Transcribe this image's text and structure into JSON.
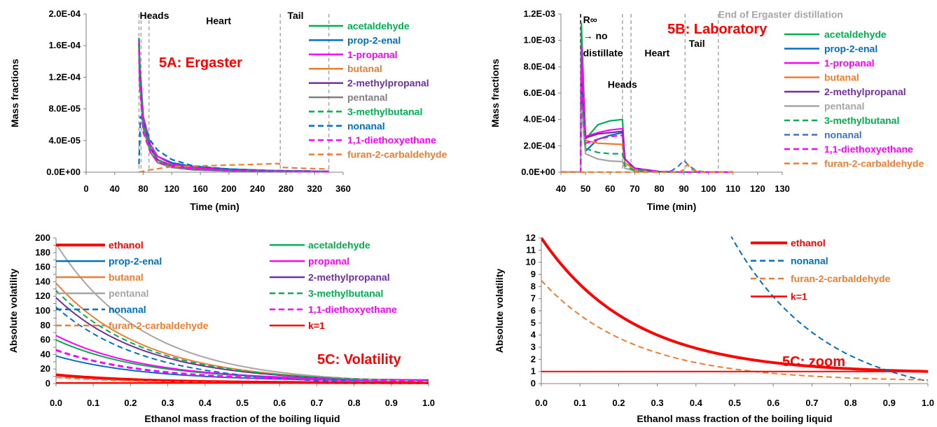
{
  "chart_data": [
    {
      "id": "A",
      "type": "line",
      "title": "5A: Ergaster",
      "xlabel": "Time (min)",
      "ylabel": "Mass fractions",
      "xlim": [
        0,
        360
      ],
      "ylim": [
        0,
        0.0002
      ],
      "xticks": [
        0,
        40,
        80,
        120,
        160,
        200,
        240,
        280,
        320,
        360
      ],
      "yticks": [
        0,
        4e-05,
        8e-05,
        0.00012,
        0.00016,
        0.0002
      ],
      "ytick_labels": [
        "0.0E+00",
        "4.0E-05",
        "8.0E-05",
        "1.2E-04",
        "1.6E-04",
        "2.0E-04"
      ],
      "vlines": [
        74,
        77,
        88,
        272,
        340
      ],
      "annotations": [
        {
          "text": "Heads",
          "x": 75,
          "y": 0.000194
        },
        {
          "text": "Heart",
          "x": 168,
          "y": 0.000187
        },
        {
          "text": "Tail",
          "x": 282,
          "y": 0.000194
        }
      ],
      "series": [
        {
          "name": "acetaldehyde",
          "color": "#00b050",
          "dash": false,
          "x": [
            74,
            75,
            80,
            90,
            100,
            120,
            150,
            200,
            260,
            340
          ],
          "y": [
            0.00017,
            0.00014,
            7e-05,
            3e-05,
            1.5e-05,
            6e-06,
            3e-06,
            1.5e-06,
            1e-06,
            5e-07
          ]
        },
        {
          "name": "prop-2-enal",
          "color": "#0070c0",
          "dash": false,
          "x": [
            74,
            75,
            80,
            90,
            100,
            120,
            150,
            200,
            260,
            340
          ],
          "y": [
            0.000168,
            0.00012,
            6e-05,
            3e-05,
            2e-05,
            1.2e-05,
            7e-06,
            4e-06,
            2e-06,
            1e-06
          ]
        },
        {
          "name": "1-propanal",
          "color": "#ff00ff",
          "dash": false,
          "x": [
            74,
            75,
            80,
            90,
            100,
            120,
            150,
            200,
            260,
            340
          ],
          "y": [
            0.000165,
            0.00013,
            7e-05,
            3.5e-05,
            2e-05,
            1e-05,
            6e-06,
            3e-06,
            2e-06,
            1e-06
          ]
        },
        {
          "name": "butanal",
          "color": "#ed7d31",
          "dash": false,
          "x": [
            74,
            75,
            80,
            90,
            100,
            120,
            150,
            200,
            260,
            340
          ],
          "y": [
            0.00016,
            0.00012,
            6e-05,
            3e-05,
            1.5e-05,
            8e-06,
            4e-06,
            2e-06,
            1e-06,
            5e-07
          ]
        },
        {
          "name": "2-methylpropanal",
          "color": "#7030a0",
          "dash": false,
          "x": [
            74,
            75,
            80,
            90,
            100,
            120,
            150,
            200,
            260,
            340
          ],
          "y": [
            0.000162,
            0.000125,
            6e-05,
            3e-05,
            1.6e-05,
            8e-06,
            4e-06,
            2e-06,
            1e-06,
            5e-07
          ]
        },
        {
          "name": "pentanal",
          "color": "#808080",
          "dash": false,
          "x": [
            74,
            75,
            80,
            90,
            100,
            120,
            150,
            200,
            260,
            340
          ],
          "y": [
            0.000155,
            0.000115,
            5.5e-05,
            2.5e-05,
            1.2e-05,
            6e-06,
            3e-06,
            1.5e-06,
            1e-06,
            5e-07
          ]
        },
        {
          "name": "3-methylbutanal",
          "color": "#00b050",
          "dash": true,
          "x": [
            74,
            75,
            80,
            90,
            100,
            120,
            150,
            200,
            260,
            340
          ],
          "y": [
            0.00016,
            0.00012,
            6e-05,
            3e-05,
            1.6e-05,
            8e-06,
            4e-06,
            2e-06,
            1e-06,
            5e-07
          ]
        },
        {
          "name": "nonanal",
          "color": "#0070c0",
          "dash": true,
          "x": [
            74,
            76,
            80,
            90,
            100,
            120,
            150,
            200,
            260,
            340
          ],
          "y": [
            1e-05,
            7e-05,
            6.5e-05,
            4e-05,
            2.8e-05,
            1.6e-05,
            8e-06,
            4e-06,
            2e-06,
            1e-06
          ]
        },
        {
          "name": "1,1-diethoxyethane",
          "color": "#ff00ff",
          "dash": true,
          "x": [
            74,
            75,
            80,
            90,
            100,
            120,
            150,
            200,
            260,
            340
          ],
          "y": [
            0.000155,
            0.00011,
            5e-05,
            2.5e-05,
            1.3e-05,
            7e-06,
            4e-06,
            2e-06,
            1e-06,
            5e-07
          ]
        },
        {
          "name": "furan-2-carbaldehyde",
          "color": "#ed7d31",
          "dash": true,
          "x": [
            74,
            90,
            120,
            160,
            200,
            240,
            270,
            276,
            300,
            340
          ],
          "y": [
            0,
            3e-06,
            7e-06,
            8e-06,
            9e-06,
            1e-05,
            1.1e-05,
            6e-06,
            5e-06,
            4e-06
          ]
        }
      ]
    },
    {
      "id": "B",
      "type": "line",
      "title": "5B: Laboratory",
      "xlabel": "Time (min)",
      "ylabel": "Mass fractions",
      "xlim": [
        40,
        130
      ],
      "ylim": [
        0,
        0.0012
      ],
      "xticks": [
        40,
        50,
        60,
        70,
        80,
        90,
        100,
        110,
        120,
        130
      ],
      "yticks": [
        0,
        0.0002,
        0.0004,
        0.0006,
        0.0008,
        0.001,
        0.0012
      ],
      "ytick_labels": [
        "0.0E+00",
        "2.0E-04",
        "4.0E-04",
        "6.0E-04",
        "8.0E-04",
        "1.0E-03",
        "1.2E-03"
      ],
      "vlines": [
        48,
        65,
        68.5,
        90.5,
        104
      ],
      "annotations": [
        {
          "text": "R∞",
          "x": 49,
          "y": 0.00113
        },
        {
          "text": "→ no",
          "x": 49,
          "y": 0.00101
        },
        {
          "text": "distillate",
          "x": 49,
          "y": 0.00088
        },
        {
          "text": "Heart",
          "x": 74,
          "y": 0.00088
        },
        {
          "text": "Heads",
          "x": 59,
          "y": 0.00064
        },
        {
          "text": "Tail",
          "x": 92,
          "y": 0.00095
        },
        {
          "text": "End of  Ergaster distillation",
          "x": 104,
          "y": 0.00117
        }
      ],
      "series": [
        {
          "name": "acetaldehyde",
          "color": "#00b050",
          "dash": false,
          "x": [
            40,
            48,
            48.3,
            50,
            55,
            60,
            65,
            66,
            70,
            80,
            90,
            100,
            110
          ],
          "y": [
            0,
            0,
            0.00113,
            0.00025,
            0.00036,
            0.00039,
            0.0004,
            0.0001,
            2e-05,
            3e-06,
            0,
            0,
            0
          ]
        },
        {
          "name": "prop-2-enal",
          "color": "#0070c0",
          "dash": false,
          "x": [
            40,
            48,
            48.3,
            50,
            55,
            60,
            65,
            66,
            70,
            80,
            90,
            100,
            110
          ],
          "y": [
            0,
            0,
            0.00072,
            0.00016,
            0.00025,
            0.00028,
            0.0003,
            0.0001,
            3e-05,
            5e-06,
            0,
            0,
            0
          ]
        },
        {
          "name": "1-propanal",
          "color": "#ff00ff",
          "dash": false,
          "x": [
            40,
            48,
            48.3,
            50,
            55,
            60,
            65,
            66,
            70,
            80,
            90,
            100,
            110
          ],
          "y": [
            0,
            0,
            0.00095,
            0.00027,
            0.0003,
            0.00032,
            0.00033,
            0.0001,
            3e-05,
            5e-06,
            0,
            0,
            0
          ]
        },
        {
          "name": "butanal",
          "color": "#ed7d31",
          "dash": false,
          "x": [
            40,
            48,
            48.3,
            50,
            55,
            60,
            65,
            66,
            70,
            80,
            90,
            100,
            110
          ],
          "y": [
            0,
            0,
            0.00055,
            0.00024,
            0.00022,
            0.000215,
            0.00021,
            7e-05,
            2e-05,
            3e-06,
            0,
            0,
            0
          ]
        },
        {
          "name": "2-methylpropanal",
          "color": "#7030a0",
          "dash": false,
          "x": [
            40,
            48,
            48.3,
            50,
            55,
            60,
            65,
            66,
            70,
            80,
            90,
            100,
            110
          ],
          "y": [
            0,
            0,
            0.0007,
            0.00026,
            0.00029,
            0.0003,
            0.00031,
            0.0001,
            3e-05,
            5e-06,
            0,
            0,
            0
          ]
        },
        {
          "name": "pentanal",
          "color": "#a6a6a6",
          "dash": false,
          "x": [
            40,
            48,
            48.3,
            50,
            55,
            60,
            65,
            66,
            70,
            80,
            90,
            100,
            110
          ],
          "y": [
            0,
            0,
            0.0005,
            0.00014,
            0.0001,
            8.5e-05,
            8e-05,
            3e-05,
            1e-05,
            2e-06,
            0,
            0,
            0
          ]
        },
        {
          "name": "3-methylbutanal",
          "color": "#00b050",
          "dash": true,
          "x": [
            40,
            48,
            48.3,
            50,
            55,
            60,
            65,
            66,
            70,
            80,
            90,
            100,
            110
          ],
          "y": [
            0,
            0,
            0.0006,
            0.00018,
            0.00015,
            0.00014,
            0.00014,
            5e-05,
            1e-05,
            2e-06,
            0,
            0,
            0
          ]
        },
        {
          "name": "nonanal",
          "color": "#4472c4",
          "dash": true,
          "x": [
            40,
            80,
            85,
            88,
            90,
            92,
            95,
            100,
            110
          ],
          "y": [
            0,
            0,
            1e-05,
            5e-05,
            9e-05,
            5e-05,
            1e-05,
            0,
            0
          ]
        },
        {
          "name": "1,1-diethoxyethane",
          "color": "#ff00ff",
          "dash": true,
          "x": [
            40,
            48,
            48.3,
            50,
            55,
            60,
            65,
            66,
            70,
            80,
            90,
            100,
            110
          ],
          "y": [
            0,
            0,
            0.0009,
            0.00022,
            0.00025,
            0.00027,
            0.00028,
            0.0001,
            3e-05,
            5e-06,
            0,
            0,
            0
          ]
        },
        {
          "name": "furan-2-carbaldehyde",
          "color": "#ed7d31",
          "dash": true,
          "x": [
            40,
            88,
            90,
            91.5,
            93,
            96,
            100,
            110
          ],
          "y": [
            0,
            0,
            2e-05,
            6e-05,
            2e-05,
            5e-06,
            0,
            0
          ]
        }
      ]
    },
    {
      "id": "C",
      "type": "line",
      "title": "5C: Volatility",
      "xlabel": "Ethanol mass fraction of the boiling liquid",
      "ylabel": "Absolute volatility",
      "xlim": [
        0,
        1
      ],
      "ylim": [
        0,
        200
      ],
      "xticks": [
        0,
        0.1,
        0.2,
        0.3,
        0.4,
        0.5,
        0.6,
        0.7,
        0.8,
        0.9,
        1.0
      ],
      "xtick_labels": [
        "0.0",
        "0.1",
        "0.2",
        "0.3",
        "0.4",
        "0.5",
        "0.6",
        "0.7",
        "0.8",
        "0.9",
        "1.0"
      ],
      "yticks": [
        0,
        10,
        20,
        30,
        40,
        50,
        60,
        70,
        80,
        90,
        100,
        110,
        120,
        130,
        140,
        150,
        160,
        170,
        180,
        190,
        200
      ],
      "ytick_labels": [
        "0",
        "",
        "20",
        "",
        "40",
        "",
        "60",
        "",
        "80",
        "",
        "100",
        "",
        "120",
        "",
        "140",
        "",
        "160",
        "",
        "180",
        "",
        "200"
      ],
      "series": [
        {
          "name": "ethanol",
          "color": "#ff0000",
          "dash": false,
          "width": 4,
          "start": 12,
          "end": 1
        },
        {
          "name": "acetaldehyde",
          "color": "#00b050",
          "dash": false,
          "width": 2,
          "start": 60,
          "end": 5
        },
        {
          "name": "prop-2-enal",
          "color": "#0070c0",
          "dash": false,
          "width": 2,
          "start": 38,
          "end": 4
        },
        {
          "name": "propanal",
          "color": "#ff00ff",
          "dash": false,
          "width": 2,
          "start": 66,
          "end": 5
        },
        {
          "name": "butanal",
          "color": "#ed7d31",
          "dash": false,
          "width": 2,
          "start": 138,
          "end": 4
        },
        {
          "name": "2-methylpropanal",
          "color": "#7030a0",
          "dash": false,
          "width": 2,
          "start": 118,
          "end": 4
        },
        {
          "name": "pentanal",
          "color": "#a6a6a6",
          "dash": false,
          "width": 2,
          "start": 192,
          "end": 3
        },
        {
          "name": "3-methylbutanal",
          "color": "#00b050",
          "dash": true,
          "width": 2,
          "start": 128,
          "end": 4
        },
        {
          "name": "nonanal",
          "color": "#0070c0",
          "dash": true,
          "width": 2,
          "start": 105,
          "end": 0.2
        },
        {
          "name": "1,1-diethoxyethane",
          "color": "#ff00ff",
          "dash": true,
          "width": 3,
          "start": 46,
          "end": 4
        },
        {
          "name": "furan-2-carbaldehyde",
          "color": "#ed7d31",
          "dash": true,
          "width": 2,
          "start": 8.5,
          "end": 0.3
        },
        {
          "name": "k=1",
          "color": "#ff0000",
          "dash": false,
          "width": 2,
          "start": 1,
          "end": 1
        }
      ]
    },
    {
      "id": "D",
      "type": "line",
      "title": "5C: zoom",
      "xlabel": "Ethanol mass fraction of the boiling liquid",
      "ylabel": "Absolute volatility",
      "xlim": [
        0,
        1
      ],
      "ylim": [
        0,
        12
      ],
      "xticks": [
        0,
        0.1,
        0.2,
        0.3,
        0.4,
        0.5,
        0.6,
        0.7,
        0.8,
        0.9,
        1.0
      ],
      "xtick_labels": [
        "0.0",
        "0.1",
        "0.2",
        "0.3",
        "0.4",
        "0.5",
        "0.6",
        "0.7",
        "0.8",
        "0.9",
        "1.0"
      ],
      "yticks": [
        0,
        1,
        2,
        3,
        4,
        5,
        6,
        7,
        8,
        9,
        10,
        11,
        12
      ],
      "ytick_labels": [
        "0",
        "1",
        "2",
        "3",
        "4",
        "5",
        "6",
        "7",
        "8",
        "9",
        "10",
        "11",
        "12"
      ],
      "series": [
        {
          "name": "ethanol",
          "color": "#ff0000",
          "dash": false,
          "width": 4,
          "start": 12,
          "end": 1
        },
        {
          "name": "nonanal",
          "color": "#0070c0",
          "dash": true,
          "width": 2,
          "start": 105,
          "end": 0.2
        },
        {
          "name": "furan-2-carbaldehyde",
          "color": "#ed7d31",
          "dash": true,
          "width": 2,
          "start": 8.5,
          "end": 0.3
        },
        {
          "name": "k=1",
          "color": "#ff0000",
          "dash": false,
          "width": 2,
          "start": 1,
          "end": 1
        }
      ]
    }
  ]
}
